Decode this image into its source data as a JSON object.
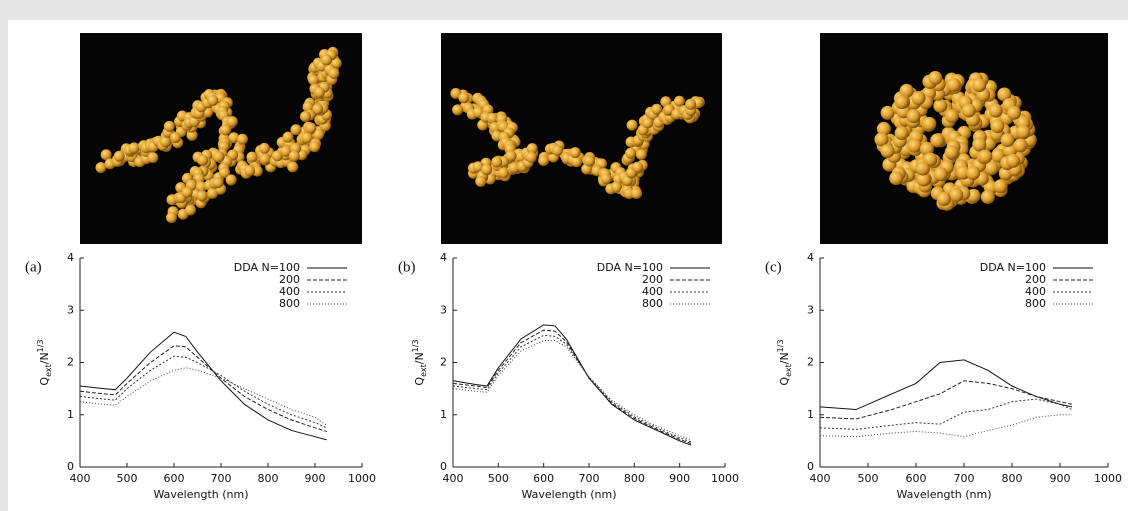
{
  "chart_data": [
    {
      "type": "line",
      "panel": "(a)",
      "xlabel": "Wavelength (nm)",
      "ylabel": [
        "Q",
        "ext",
        "/N",
        "1/3"
      ],
      "x": [
        400,
        450,
        475,
        500,
        550,
        600,
        625,
        650,
        700,
        750,
        800,
        850,
        900,
        925
      ],
      "xlim": [
        400,
        1000
      ],
      "xticks": [
        400,
        500,
        600,
        700,
        800,
        900,
        1000
      ],
      "ylim": [
        0,
        4
      ],
      "yticks": [
        0,
        1,
        2,
        3,
        4
      ],
      "series": [
        {
          "name": "DDA N=100",
          "color": "#111111",
          "dash": "solid",
          "values": [
            1.55,
            1.5,
            1.48,
            1.7,
            2.2,
            2.58,
            2.5,
            2.2,
            1.65,
            1.2,
            0.9,
            0.7,
            0.58,
            0.52
          ]
        },
        {
          "name": "200",
          "color": "#222222",
          "dash": "dashed",
          "values": [
            1.45,
            1.4,
            1.38,
            1.6,
            2.0,
            2.32,
            2.3,
            2.1,
            1.7,
            1.35,
            1.1,
            0.9,
            0.75,
            0.68
          ]
        },
        {
          "name": "400",
          "color": "#333333",
          "dash": "dotted",
          "values": [
            1.35,
            1.3,
            1.28,
            1.5,
            1.85,
            2.12,
            2.1,
            2.0,
            1.75,
            1.45,
            1.2,
            1.0,
            0.85,
            0.75
          ]
        },
        {
          "name": "800",
          "color": "#444444",
          "dash": "fine",
          "values": [
            1.25,
            1.2,
            1.18,
            1.35,
            1.65,
            1.85,
            1.9,
            1.85,
            1.7,
            1.5,
            1.3,
            1.1,
            0.95,
            0.8
          ]
        }
      ]
    },
    {
      "type": "line",
      "panel": "(b)",
      "xlabel": "Wavelength (nm)",
      "ylabel": [
        "Q",
        "ext",
        "/N",
        "1/3"
      ],
      "x": [
        400,
        450,
        475,
        500,
        550,
        600,
        625,
        650,
        700,
        750,
        800,
        850,
        900,
        925
      ],
      "xlim": [
        400,
        1000
      ],
      "xticks": [
        400,
        500,
        600,
        700,
        800,
        900,
        1000
      ],
      "ylim": [
        0,
        4
      ],
      "yticks": [
        0,
        1,
        2,
        3,
        4
      ],
      "series": [
        {
          "name": "DDA N=100",
          "color": "#111111",
          "dash": "solid",
          "values": [
            1.65,
            1.58,
            1.55,
            1.9,
            2.45,
            2.72,
            2.7,
            2.45,
            1.7,
            1.2,
            0.9,
            0.7,
            0.5,
            0.42
          ]
        },
        {
          "name": "200",
          "color": "#222222",
          "dash": "dashed",
          "values": [
            1.6,
            1.55,
            1.52,
            1.85,
            2.38,
            2.62,
            2.6,
            2.4,
            1.7,
            1.22,
            0.93,
            0.72,
            0.53,
            0.45
          ]
        },
        {
          "name": "400",
          "color": "#333333",
          "dash": "dotted",
          "values": [
            1.55,
            1.5,
            1.48,
            1.8,
            2.3,
            2.52,
            2.5,
            2.35,
            1.72,
            1.25,
            0.96,
            0.75,
            0.56,
            0.48
          ]
        },
        {
          "name": "800",
          "color": "#444444",
          "dash": "fine",
          "values": [
            1.5,
            1.45,
            1.43,
            1.75,
            2.22,
            2.42,
            2.42,
            2.3,
            1.72,
            1.28,
            1.0,
            0.78,
            0.6,
            0.52
          ]
        }
      ]
    },
    {
      "type": "line",
      "panel": "(c)",
      "xlabel": "Wavelength (nm)",
      "ylabel": [
        "Q",
        "ext",
        "/N",
        "1/3"
      ],
      "x": [
        400,
        475,
        550,
        600,
        650,
        700,
        750,
        800,
        850,
        900,
        925
      ],
      "xlim": [
        400,
        1000
      ],
      "xticks": [
        400,
        500,
        600,
        700,
        800,
        900,
        1000
      ],
      "ylim": [
        0,
        4
      ],
      "yticks": [
        0,
        1,
        2,
        3,
        4
      ],
      "series": [
        {
          "name": "DDA N=100",
          "color": "#111111",
          "dash": "solid",
          "values": [
            1.15,
            1.1,
            1.4,
            1.6,
            2.0,
            2.05,
            1.85,
            1.55,
            1.35,
            1.2,
            1.15
          ]
        },
        {
          "name": "200",
          "color": "#222222",
          "dash": "dashed",
          "values": [
            0.95,
            0.92,
            1.1,
            1.25,
            1.4,
            1.65,
            1.6,
            1.5,
            1.35,
            1.25,
            1.2
          ]
        },
        {
          "name": "400",
          "color": "#333333",
          "dash": "dotted",
          "values": [
            0.75,
            0.72,
            0.8,
            0.85,
            0.82,
            1.05,
            1.1,
            1.25,
            1.3,
            1.2,
            1.1
          ]
        },
        {
          "name": "800",
          "color": "#444444",
          "dash": "fine",
          "values": [
            0.6,
            0.58,
            0.65,
            0.68,
            0.65,
            0.58,
            0.7,
            0.8,
            0.95,
            1.0,
            1.0
          ]
        }
      ]
    }
  ]
}
